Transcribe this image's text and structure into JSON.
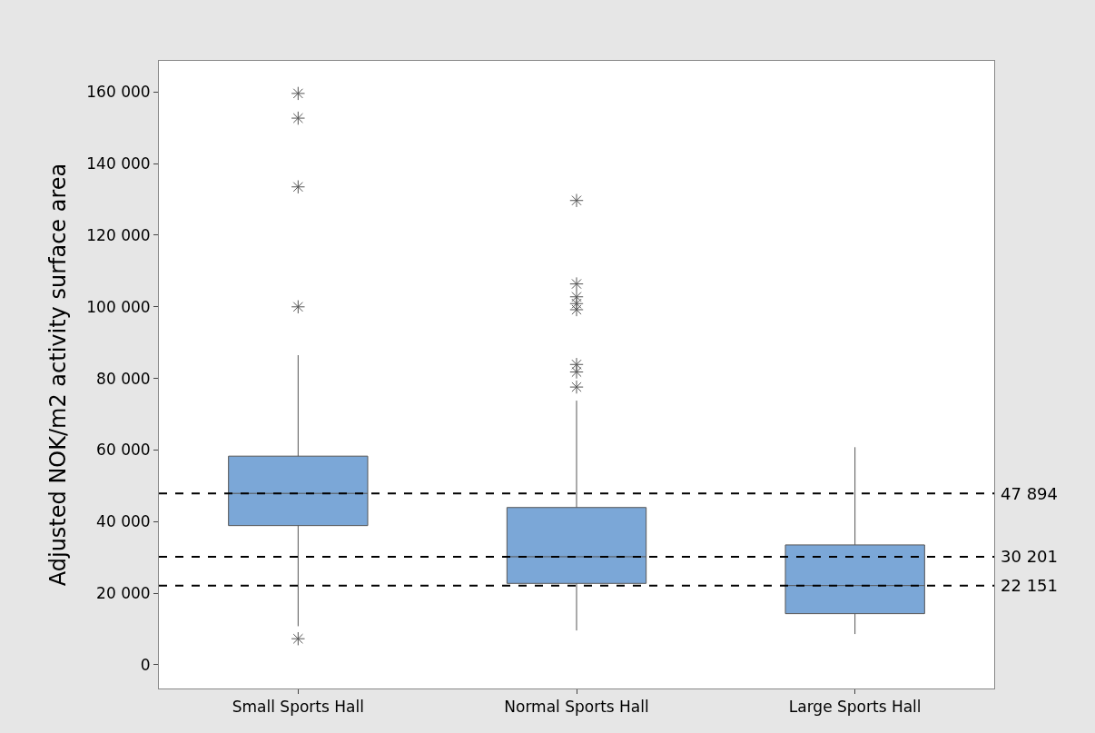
{
  "chart_data": {
    "type": "box",
    "ylabel": "Adjusted NOK/m2 activity surface area",
    "categories": [
      "Small Sports Hall",
      "Normal Sports Hall",
      "Large Sports Hall"
    ],
    "color": "#7ba7d7",
    "boxes": [
      {
        "low": 10800,
        "q1": 38900,
        "median": 47894,
        "q3": 58300,
        "high": 86500,
        "outliers": [
          7300,
          100000,
          133500,
          152700,
          159600
        ]
      },
      {
        "low": 9600,
        "q1": 22750,
        "median": 30201,
        "q3": 43950,
        "high": 73800,
        "outliers": [
          77600,
          81800,
          83900,
          99200,
          100900,
          102800,
          106400,
          129700
        ]
      },
      {
        "low": 8600,
        "q1": 14300,
        "median": 22151,
        "q3": 33500,
        "high": 60800
      }
    ],
    "ylim": [
      -6600,
      168700
    ],
    "yticks": [
      {
        "value": 0,
        "label": "0"
      },
      {
        "value": 20000,
        "label": "20 000"
      },
      {
        "value": 40000,
        "label": "40 000"
      },
      {
        "value": 60000,
        "label": "60 000"
      },
      {
        "value": 80000,
        "label": "80 000"
      },
      {
        "value": 100000,
        "label": "100 000"
      },
      {
        "value": 120000,
        "label": "120 000"
      },
      {
        "value": 140000,
        "label": "140 000"
      },
      {
        "value": 160000,
        "label": "160 000"
      }
    ],
    "ref_lines": [
      {
        "axis": "y",
        "value": 47894,
        "label": "47 894",
        "color": "#000000",
        "line_style": "dashed"
      },
      {
        "axis": "y",
        "value": 30201,
        "label": "30 201",
        "color": "#000000",
        "line_style": "dashed"
      },
      {
        "axis": "y",
        "value": 22151,
        "label": "22 151",
        "color": "#000000",
        "line_style": "dashed"
      }
    ]
  }
}
